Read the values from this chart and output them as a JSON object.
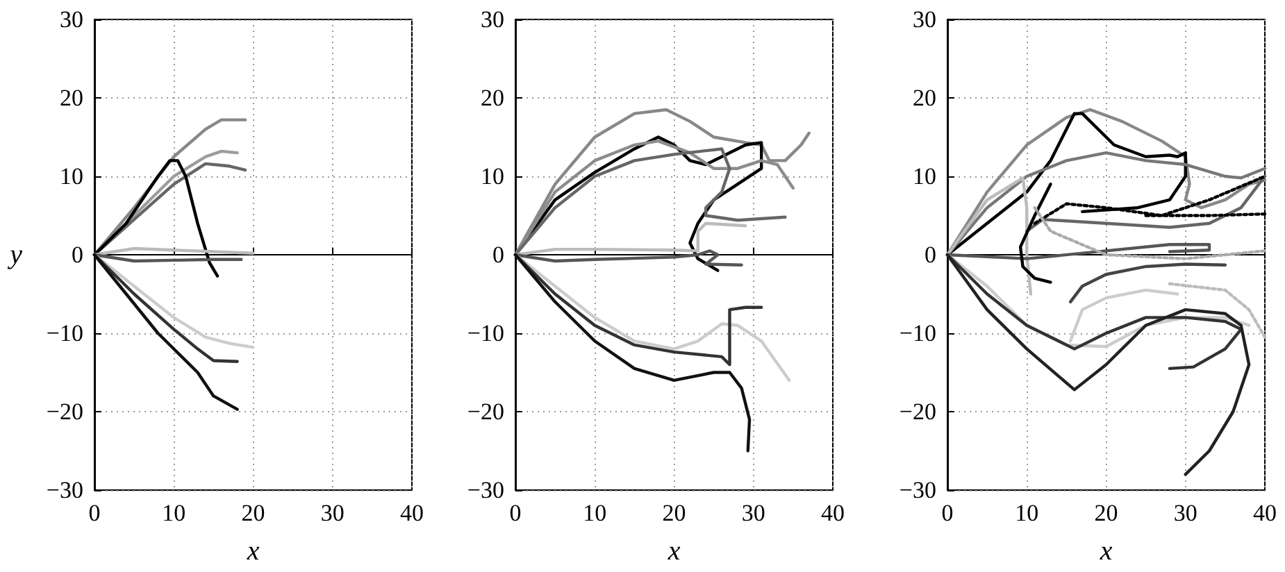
{
  "chart_data": [
    {
      "type": "line",
      "xlabel": "x",
      "ylabel": "y",
      "xlim": [
        0,
        40
      ],
      "ylim": [
        -30,
        30
      ],
      "xticks": [
        0,
        10,
        20,
        30,
        40
      ],
      "yticks": [
        -30,
        -20,
        -10,
        0,
        10,
        20,
        30
      ],
      "grid": true,
      "marker": "none",
      "line_style": "solid",
      "series": [
        {
          "color": "#888888",
          "x": [
            0,
            5,
            10,
            14,
            16,
            19
          ],
          "values": [
            0,
            6,
            12.5,
            16,
            17.2,
            17.2
          ]
        },
        {
          "color": "#9c9c9c",
          "x": [
            0,
            5,
            10,
            14,
            16,
            18
          ],
          "values": [
            0,
            5,
            10,
            12.5,
            13.2,
            13
          ]
        },
        {
          "color": "#666666",
          "x": [
            0,
            5,
            10,
            14,
            17,
            19
          ],
          "values": [
            0,
            4.5,
            9,
            11.6,
            11.3,
            10.8
          ]
        },
        {
          "color": "#000000",
          "x": [
            0,
            4,
            8,
            9.5,
            10.5,
            11.5,
            13,
            14.5,
            15.5
          ],
          "values": [
            0,
            4,
            10,
            12,
            12,
            10,
            4,
            -1,
            -2.7
          ]
        },
        {
          "color": "#bbbbbb",
          "x": [
            0,
            5,
            10,
            15,
            20
          ],
          "values": [
            0,
            0.8,
            0.6,
            0.4,
            0.2
          ]
        },
        {
          "color": "#555555",
          "x": [
            0,
            5,
            10,
            15,
            18.5
          ],
          "values": [
            0,
            -0.8,
            -0.7,
            -0.6,
            -0.6
          ]
        },
        {
          "color": "#cccccc",
          "x": [
            0,
            5,
            10,
            14,
            17,
            20
          ],
          "values": [
            0,
            -4,
            -8,
            -10.5,
            -11.3,
            -11.8
          ]
        },
        {
          "color": "#333333",
          "x": [
            0,
            5,
            10,
            13,
            15,
            18
          ],
          "values": [
            0,
            -5,
            -9.5,
            -12,
            -13.5,
            -13.6
          ]
        },
        {
          "color": "#111111",
          "x": [
            0,
            4,
            8,
            11,
            13,
            15,
            18
          ],
          "values": [
            0,
            -5,
            -10,
            -13,
            -15,
            -18,
            -19.7
          ]
        }
      ]
    },
    {
      "type": "line",
      "xlabel": "x",
      "xlim": [
        0,
        40
      ],
      "ylim": [
        -30,
        30
      ],
      "xticks": [
        0,
        10,
        20,
        30,
        40
      ],
      "yticks": [
        -30,
        -20,
        -10,
        0,
        10,
        20,
        30
      ],
      "grid": true,
      "marker": "none",
      "line_style": "solid",
      "series": [
        {
          "color": "#888888",
          "x": [
            0,
            5,
            10,
            15,
            19,
            22,
            25,
            29,
            31,
            32,
            34,
            36,
            37
          ],
          "values": [
            0,
            9,
            15,
            18,
            18.5,
            17,
            15,
            14.3,
            14,
            12,
            12,
            14,
            15.5
          ]
        },
        {
          "color": "#000000",
          "x": [
            0,
            5,
            10,
            15,
            18,
            20,
            22,
            24,
            26,
            29,
            31,
            31,
            28,
            25,
            23,
            22,
            23,
            25.5
          ],
          "values": [
            0,
            7,
            10.5,
            13.5,
            15,
            14,
            12,
            11.5,
            12.5,
            14,
            14.3,
            11,
            9,
            7,
            4,
            1.5,
            -0.5,
            -2
          ]
        },
        {
          "color": "#8c8c8c",
          "x": [
            0,
            5,
            10,
            15,
            18,
            22,
            25,
            28,
            31,
            33,
            35
          ],
          "values": [
            0,
            8,
            12,
            14,
            14.5,
            13,
            11,
            11,
            12,
            11.5,
            8.5
          ]
        },
        {
          "color": "#666666",
          "x": [
            0,
            5,
            10,
            15,
            20,
            26,
            27,
            26,
            24,
            24,
            28,
            34
          ],
          "values": [
            0,
            6,
            10,
            12,
            12.8,
            13.5,
            11,
            8,
            6,
            5,
            4.4,
            4.8
          ]
        },
        {
          "color": "#bbbbbb",
          "x": [
            0,
            5,
            10,
            20,
            23,
            23,
            24,
            29
          ],
          "values": [
            0,
            0.7,
            0.7,
            0.6,
            0.5,
            3,
            4,
            3.7
          ]
        },
        {
          "color": "#555555",
          "x": [
            0,
            5,
            10,
            20,
            23,
            24.5,
            25.5,
            24,
            28.5
          ],
          "values": [
            0,
            -0.8,
            -0.6,
            -0.3,
            0,
            0.5,
            0,
            -1.2,
            -1.3
          ]
        },
        {
          "color": "#cccccc",
          "x": [
            0,
            5,
            10,
            15,
            20,
            23,
            26,
            28,
            31,
            34.5
          ],
          "values": [
            0,
            -4,
            -8,
            -11,
            -12,
            -11,
            -8.8,
            -9,
            -11,
            -16
          ]
        },
        {
          "color": "#333333",
          "x": [
            0,
            5,
            10,
            15,
            20,
            26,
            27,
            27,
            27,
            29,
            31
          ],
          "values": [
            0,
            -5,
            -9,
            -11.5,
            -12.4,
            -13,
            -14,
            -10,
            -7,
            -6.7,
            -6.7
          ]
        },
        {
          "color": "#111111",
          "x": [
            0,
            5,
            10,
            15,
            20,
            25,
            27,
            28.5,
            29.5,
            29.3
          ],
          "values": [
            0,
            -6,
            -11,
            -14.5,
            -16,
            -15,
            -15,
            -17,
            -21,
            -25
          ]
        }
      ]
    },
    {
      "type": "line",
      "xlabel": "x",
      "xlim": [
        0,
        40
      ],
      "ylim": [
        -30,
        30
      ],
      "xticks": [
        0,
        10,
        20,
        30,
        40
      ],
      "yticks": [
        -30,
        -20,
        -10,
        0,
        10,
        20,
        30
      ],
      "grid": true,
      "marker": "none",
      "line_style": "solid",
      "series": [
        {
          "color": "#888888",
          "x": [
            0,
            5,
            10,
            15,
            18,
            22,
            27,
            30,
            30.5,
            30,
            32,
            35,
            38,
            40
          ],
          "values": [
            0,
            8,
            14,
            17.5,
            18.5,
            17,
            14.5,
            12.5,
            9,
            7,
            6,
            7,
            9,
            9.5
          ]
        },
        {
          "color": "#000000",
          "x": [
            0,
            5,
            10,
            13,
            16,
            17,
            21,
            25,
            28,
            29,
            30,
            30,
            28,
            24,
            17
          ],
          "values": [
            0,
            4,
            8,
            12,
            18,
            18,
            14,
            12.5,
            12.7,
            12.5,
            13,
            10,
            7,
            6,
            5.5
          ]
        },
        {
          "color": "#777777",
          "x": [
            0,
            5,
            10,
            15,
            20,
            25,
            30,
            35,
            37,
            40
          ],
          "values": [
            0,
            6,
            10,
            12,
            13,
            12,
            11.5,
            10,
            9.8,
            11
          ]
        },
        {
          "color": "#bbbbbb",
          "x": [
            0,
            5,
            9.5,
            10,
            10,
            10.5
          ],
          "values": [
            0,
            7,
            9.8,
            6,
            0,
            -5
          ]
        },
        {
          "color": "#555555",
          "x": [
            0,
            10,
            20,
            28,
            33,
            33,
            28
          ],
          "values": [
            0,
            -0.5,
            0.5,
            1.3,
            1.3,
            0.6,
            0.4
          ]
        },
        {
          "color": "#666666",
          "x": [
            10,
            12,
            20,
            28,
            33,
            37,
            40
          ],
          "values": [
            3,
            4.5,
            4,
            3.5,
            4,
            6,
            10
          ]
        },
        {
          "color": "#000000",
          "line_style": "dotted",
          "x": [
            11,
            15,
            20,
            27,
            33,
            40
          ],
          "values": [
            4,
            6.5,
            6,
            5,
            7,
            10
          ]
        },
        {
          "color": "#000000",
          "line_style": "dotted",
          "x": [
            25,
            33,
            40
          ],
          "values": [
            5,
            5,
            5.2
          ]
        },
        {
          "color": "#000000",
          "x": [
            13,
            11,
            9.2,
            9.5,
            11,
            13
          ],
          "values": [
            9,
            5,
            1,
            -1.5,
            -3,
            -3.5
          ]
        },
        {
          "color": "#444444",
          "x": [
            15.5,
            17,
            20,
            25,
            30,
            35
          ],
          "values": [
            -6,
            -4,
            -2.5,
            -1.5,
            -1.2,
            -1.3
          ]
        },
        {
          "color": "#cccccc",
          "x": [
            0,
            5,
            10,
            15,
            20,
            25,
            30,
            35,
            38
          ],
          "values": [
            0,
            -4,
            -9,
            -11.5,
            -11.7,
            -9,
            -8,
            -8,
            -9
          ]
        },
        {
          "color": "#cccccc",
          "x": [
            15.5,
            17,
            20,
            25,
            29
          ],
          "values": [
            -11,
            -7,
            -5.5,
            -4.5,
            -5
          ]
        },
        {
          "color": "#bbbbbb",
          "line_style": "dotted",
          "x": [
            28,
            35,
            38,
            40
          ],
          "values": [
            -3.7,
            -4.5,
            -7,
            -10.5
          ]
        },
        {
          "color": "#aaaaaa",
          "line_style": "dotted",
          "x": [
            11,
            13,
            20,
            30,
            40
          ],
          "values": [
            6,
            3,
            0,
            -0.5,
            0.5
          ]
        },
        {
          "color": "#333333",
          "x": [
            0,
            5,
            10,
            16,
            20,
            25,
            30,
            35,
            37,
            35,
            31,
            28
          ],
          "values": [
            0,
            -5,
            -9,
            -12,
            -10,
            -8,
            -8,
            -8.5,
            -9.5,
            -12,
            -14.3,
            -14.5
          ]
        },
        {
          "color": "#222222",
          "x": [
            0,
            5,
            10,
            16,
            20,
            25,
            30,
            35,
            37,
            38,
            36,
            33,
            30
          ],
          "values": [
            0,
            -7,
            -12,
            -17.2,
            -14,
            -9,
            -7,
            -7.5,
            -9,
            -14,
            -20,
            -25,
            -28
          ]
        }
      ]
    }
  ]
}
